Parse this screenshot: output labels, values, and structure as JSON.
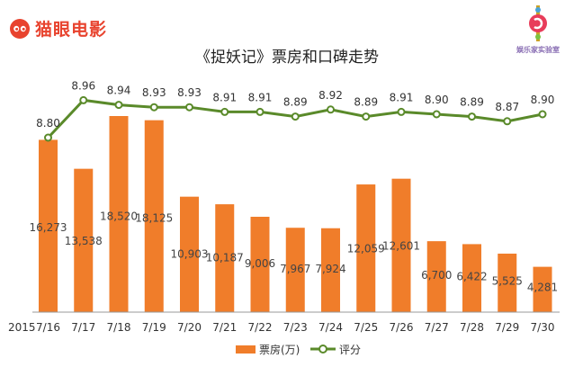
{
  "brand": {
    "left_logo_text": "猫眼电影",
    "right_logo_text": "娱乐家实验室"
  },
  "colors": {
    "bar": "#f07d2a",
    "line": "#5a8a2a",
    "marker_fill": "#ffffff",
    "brand": "#e8432e"
  },
  "chart_data": {
    "type": "bar",
    "title": "《捉妖记》票房和口碑走势",
    "x_prefix": "2015",
    "categories": [
      "7/16",
      "7/17",
      "7/18",
      "7/19",
      "7/20",
      "7/21",
      "7/22",
      "7/23",
      "7/24",
      "7/25",
      "7/26",
      "7/27",
      "7/28",
      "7/29",
      "7/30"
    ],
    "series": [
      {
        "name": "票房(万)",
        "type": "bar",
        "axis": "left",
        "values": [
          16273,
          13538,
          18520,
          18125,
          10903,
          10187,
          9006,
          7967,
          7924,
          12059,
          12601,
          6700,
          6422,
          5525,
          4281
        ]
      },
      {
        "name": "评分",
        "type": "line",
        "axis": "right",
        "values": [
          8.8,
          8.96,
          8.94,
          8.93,
          8.93,
          8.91,
          8.91,
          8.89,
          8.92,
          8.89,
          8.91,
          8.9,
          8.89,
          8.87,
          8.9
        ]
      }
    ],
    "bar_labels": [
      "16,273",
      "13,538",
      "18,520",
      "18,125",
      "10,903",
      "10,187",
      "9,006",
      "7,967",
      "7,924",
      "12,059",
      "12,601",
      "6,700",
      "6,422",
      "5,525",
      "4,281"
    ],
    "line_labels": [
      "8.80",
      "8.96",
      "8.94",
      "8.93",
      "8.93",
      "8.91",
      "8.91",
      "8.89",
      "8.92",
      "8.89",
      "8.91",
      "8.90",
      "8.89",
      "8.87",
      "8.90"
    ],
    "legend": [
      "票房(万)",
      "评分"
    ],
    "legend_position": "bottom",
    "grid": false
  }
}
